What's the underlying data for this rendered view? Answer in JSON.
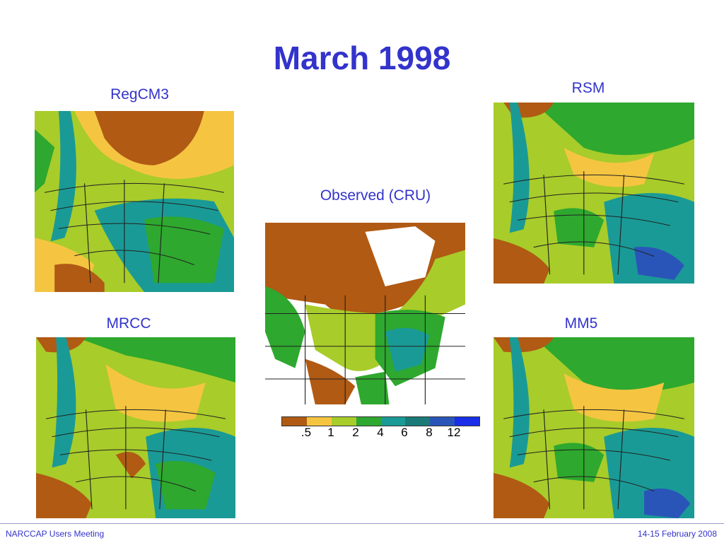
{
  "slide": {
    "title": "March 1998",
    "footer_left": "NARCCAP Users Meeting",
    "footer_right": "14-15 February 2008"
  },
  "maps": {
    "regcm3": "RegCM3",
    "rsm": "RSM",
    "observed": "Observed (CRU)",
    "mrcc": "MRCC",
    "mm5": "MM5"
  },
  "legend": {
    "colors": [
      "#b05a14",
      "#f5c542",
      "#a8cc2a",
      "#2ea82e",
      "#1a9a96",
      "#1a7a78",
      "#2a55b8",
      "#1a2ee8"
    ],
    "ticks": [
      ".5",
      "1",
      "2",
      "4",
      "6",
      "8",
      "12"
    ]
  }
}
